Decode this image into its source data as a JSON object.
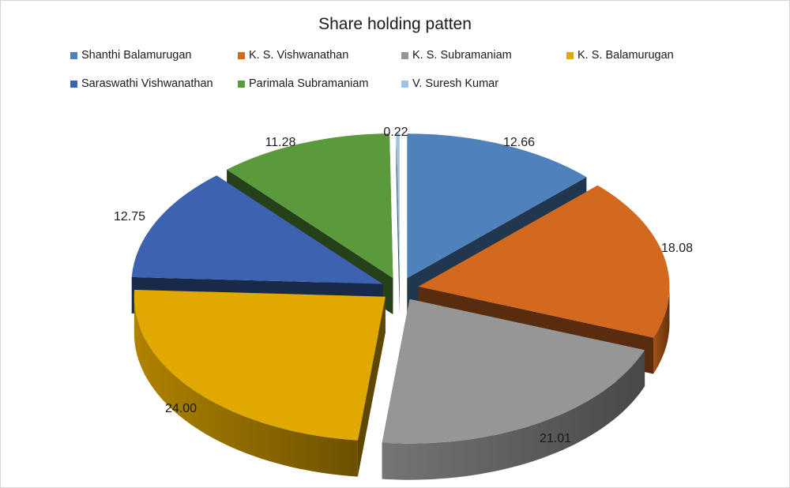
{
  "chart_data": {
    "type": "pie",
    "title": "Share holding patten",
    "style": "3d-exploded",
    "legend_position": "top",
    "slices": [
      {
        "name": "Shanthi Balamurugan",
        "value": 12.66,
        "label": "12.66",
        "color": "#4f81bd"
      },
      {
        "name": "K. S. Vishwanathan",
        "value": 18.08,
        "label": "18.08",
        "color": "#d2691e"
      },
      {
        "name": "K. S. Subramaniam",
        "value": 21.01,
        "label": "21.01",
        "color": "#969696"
      },
      {
        "name": "K. S. Balamurugan",
        "value": 24.0,
        "label": "24.00",
        "color": "#e0a800"
      },
      {
        "name": "Saraswathi Vishwanathan",
        "value": 12.75,
        "label": "12.75",
        "color": "#3c62b0"
      },
      {
        "name": "Parimala Subramaniam",
        "value": 11.28,
        "label": "11.28",
        "color": "#5a9a3c"
      },
      {
        "name": "V. Suresh Kumar",
        "value": 0.22,
        "label": "0.22",
        "color": "#9dc3e6"
      }
    ]
  }
}
